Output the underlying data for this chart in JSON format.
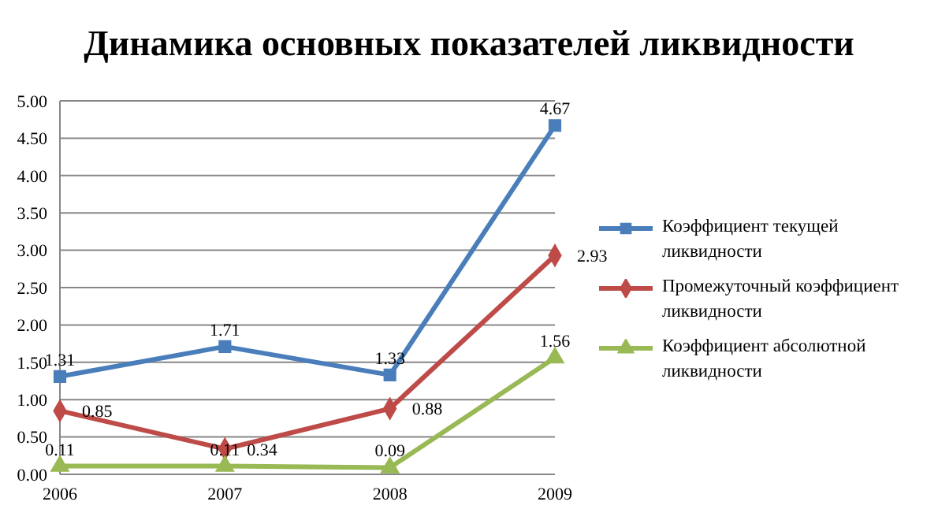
{
  "chart_data": {
    "type": "line",
    "title": "Динамика основных показателей ликвидности",
    "categories": [
      "2006",
      "2007",
      "2008",
      "2009"
    ],
    "series": [
      {
        "name": "Коэффициент текущей ликвидности",
        "color": "#4a7ebb",
        "values": [
          1.31,
          1.71,
          1.33,
          4.67
        ],
        "marker": "square"
      },
      {
        "name": "Промежуточный коэффициент ликвидности",
        "color": "#be4b48",
        "values": [
          0.85,
          0.34,
          0.88,
          2.93
        ],
        "marker": "diamond"
      },
      {
        "name": "Коэффициент абсолютной ликвидности",
        "color": "#98b954",
        "values": [
          0.11,
          0.11,
          0.09,
          1.56
        ],
        "marker": "triangle"
      }
    ],
    "ylim": [
      0,
      5
    ],
    "yticks": [
      {
        "value": 0,
        "label": "0.00"
      },
      {
        "value": 0.5,
        "label": "0.50"
      },
      {
        "value": 1,
        "label": "1.00"
      },
      {
        "value": 1.5,
        "label": "1.50"
      },
      {
        "value": 2,
        "label": "2.00"
      },
      {
        "value": 2.5,
        "label": "2.50"
      },
      {
        "value": 3,
        "label": "3.00"
      },
      {
        "value": 3.5,
        "label": "3.50"
      },
      {
        "value": 4,
        "label": "4.00"
      },
      {
        "value": 4.5,
        "label": "4.50"
      },
      {
        "value": 5,
        "label": "5.00"
      }
    ],
    "grid": "y",
    "legend": "right",
    "data_labels": true,
    "line_style": "solid"
  }
}
